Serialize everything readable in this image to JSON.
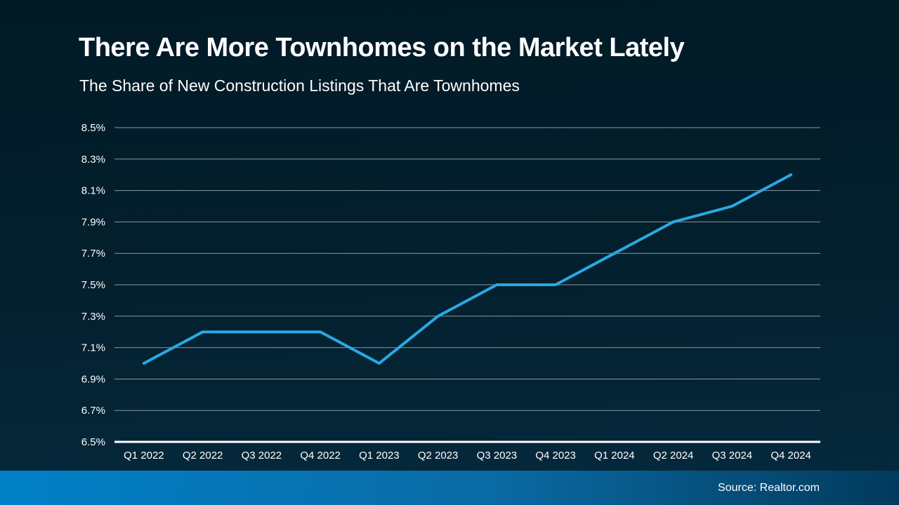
{
  "chart_data": {
    "type": "line",
    "title": "There Are More Townhomes on the Market Lately",
    "subtitle": "The Share of New Construction Listings That Are Townhomes",
    "categories": [
      "Q1 2022",
      "Q2 2022",
      "Q3 2022",
      "Q4 2022",
      "Q1 2023",
      "Q2 2023",
      "Q3 2023",
      "Q4 2023",
      "Q1 2024",
      "Q2 2024",
      "Q3 2024",
      "Q4 2024"
    ],
    "values": [
      7.0,
      7.2,
      7.2,
      7.2,
      7.0,
      7.3,
      7.5,
      7.5,
      7.7,
      7.9,
      8.0,
      8.2
    ],
    "ylim": [
      6.5,
      8.5
    ],
    "ytick_step": 0.2,
    "ytick_suffix": "%",
    "grid": true,
    "legend_position": "none",
    "colors": {
      "line": "#29a9e2",
      "gridline": "#8b95a0",
      "axis": "#ffffff",
      "labels": "#ffffff",
      "background_top": "#021a26",
      "background_bottom": "#052a3e",
      "footer_gradient_left": "#0181c8",
      "footer_gradient_right": "#023a5c"
    }
  },
  "footer": {
    "source": "Source: Realtor.com"
  }
}
